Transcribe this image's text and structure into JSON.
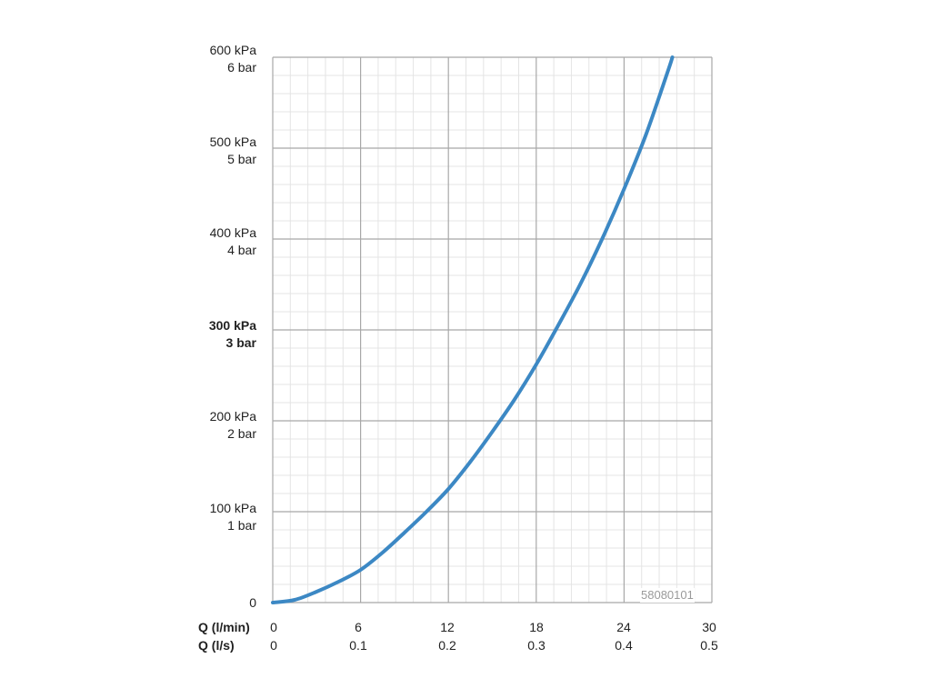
{
  "product_code": "58080101",
  "y_axis": {
    "ticks": [
      {
        "kpa": "600 kPa",
        "bar": "6 bar",
        "bold": false
      },
      {
        "kpa": "500 kPa",
        "bar": "5 bar",
        "bold": false
      },
      {
        "kpa": "400 kPa",
        "bar": "4 bar",
        "bold": false
      },
      {
        "kpa": "300 kPa",
        "bar": "3 bar",
        "bold": true
      },
      {
        "kpa": "200 kPa",
        "bar": "2 bar",
        "bold": false
      },
      {
        "kpa": "100 kPa",
        "bar": "1 bar",
        "bold": false
      },
      {
        "kpa": "0",
        "bar": "",
        "bold": false
      }
    ]
  },
  "x_axis": {
    "row1_label": "Q (l/min)",
    "row1_ticks": [
      "0",
      "6",
      "12",
      "18",
      "24",
      "30"
    ],
    "row2_label": "Q (l/s)",
    "row2_ticks": [
      "0",
      "0.1",
      "0.2",
      "0.3",
      "0.4",
      "0.5"
    ]
  },
  "colors": {
    "curve": "#3c88c4",
    "major_grid": "#a8a8a8",
    "minor_grid": "#e4e4e4"
  },
  "chart_data": {
    "type": "line",
    "title": "",
    "xlabel": "Q (l/min)",
    "x2label": "Q (l/s)",
    "ylabel": "",
    "xlim": [
      0,
      30
    ],
    "ylim": [
      0,
      600
    ],
    "y_unit": "kPa",
    "grid": true,
    "series": [
      {
        "x": [
          0,
          1.5,
          3,
          4.5,
          6,
          7.5,
          9,
          10.5,
          12,
          13.5,
          15,
          16.5,
          18,
          19.5,
          21,
          22.5,
          24,
          25.5,
          27,
          27.3
        ],
        "y": [
          0,
          3,
          12,
          23,
          36,
          55,
          77,
          100,
          125,
          155,
          188,
          223,
          262,
          305,
          350,
          400,
          455,
          515,
          585,
          600
        ]
      }
    ]
  }
}
